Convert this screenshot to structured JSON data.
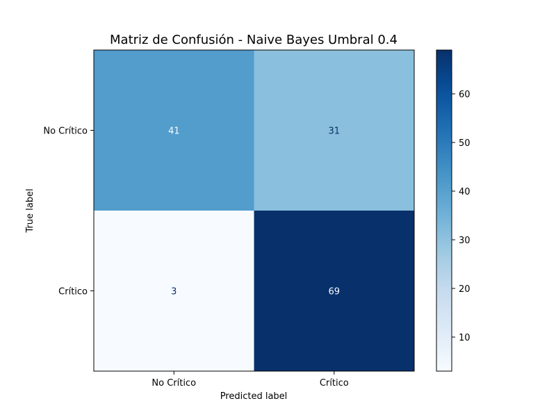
{
  "chart_data": {
    "type": "heatmap",
    "title": "Matriz de Confusión - Naive Bayes Umbral 0.4",
    "xlabel": "Predicted label",
    "ylabel": "True label",
    "x_categories": [
      "No Crítico",
      "Crítico"
    ],
    "y_categories": [
      "No Crítico",
      "Crítico"
    ],
    "values": [
      [
        41,
        31
      ],
      [
        3,
        69
      ]
    ],
    "colormap": "Blues",
    "colorbar": {
      "min": 3,
      "max": 69,
      "ticks": [
        10,
        20,
        30,
        40,
        50,
        60
      ],
      "tick_labels": [
        "10",
        "20",
        "30",
        "40",
        "50",
        "60"
      ]
    },
    "colors": {
      "low": "#f7fbff",
      "high": "#08306b",
      "text_dark": "#08306b",
      "text_light": "#f7fbff"
    }
  }
}
